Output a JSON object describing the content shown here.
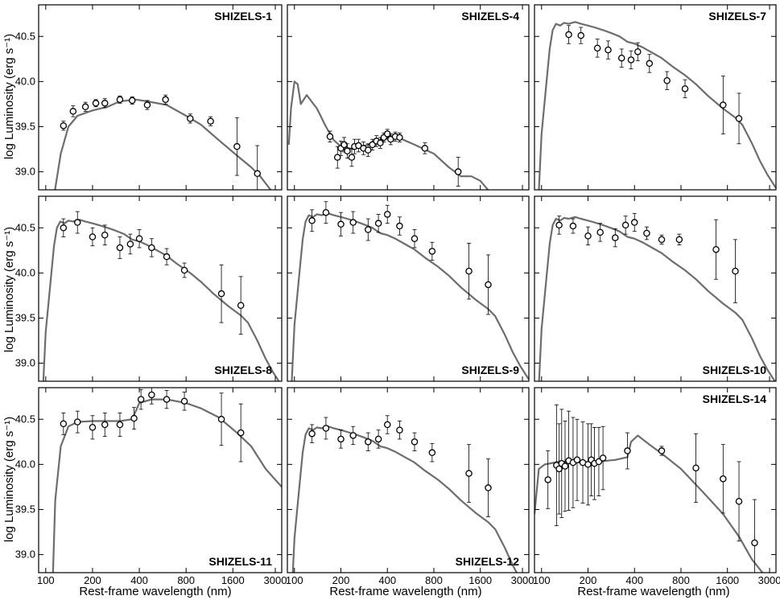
{
  "figure": {
    "ylabel": "log Luminosity (erg s⁻¹)",
    "xlabel": "Rest-frame wavelength (nm)"
  },
  "chart_data": [
    {
      "type": "scatter",
      "title": "SHIZELS-1",
      "xscale": "log",
      "xlim": [
        90,
        3300
      ],
      "ylim": [
        38.8,
        40.85
      ],
      "x": [
        160,
        185,
        220,
        250,
        300,
        340,
        400,
        480,
        550
      ],
      "y": [
        39.8,
        39.78,
        39.77,
        39.8,
        39.8,
        39.77,
        39.75,
        39.62,
        39.45
      ],
      "points": [
        {
          "x": 130,
          "y": 39.51,
          "err": 0.05
        },
        {
          "x": 150,
          "y": 39.67,
          "err": 0.06
        },
        {
          "x": 180,
          "y": 39.72,
          "err": 0.05
        },
        {
          "x": 210,
          "y": 39.76,
          "err": 0.04
        },
        {
          "x": 240,
          "y": 39.76,
          "err": 0.05
        },
        {
          "x": 300,
          "y": 39.8,
          "err": 0.04
        },
        {
          "x": 360,
          "y": 39.79,
          "err": 0.04
        },
        {
          "x": 450,
          "y": 39.74,
          "err": 0.05
        },
        {
          "x": 590,
          "y": 39.8,
          "err": 0.05
        },
        {
          "x": 850,
          "y": 39.59,
          "err": 0.05
        },
        {
          "x": 1150,
          "y": 39.56,
          "err": 0.05
        },
        {
          "x": 1700,
          "y": 39.28,
          "err": 0.32
        },
        {
          "x": 2300,
          "y": 38.98,
          "err": 0.31
        }
      ]
    },
    {
      "type": "scatter",
      "title": "SHIZELS-4",
      "xscale": "log",
      "xlim": [
        90,
        3300
      ],
      "ylim": [
        38.8,
        40.85
      ],
      "points": [
        {
          "x": 170,
          "y": 39.39,
          "err": 0.06
        },
        {
          "x": 190,
          "y": 39.16,
          "err": 0.12
        },
        {
          "x": 200,
          "y": 39.26,
          "err": 0.08
        },
        {
          "x": 210,
          "y": 39.3,
          "err": 0.08
        },
        {
          "x": 220,
          "y": 39.23,
          "err": 0.08
        },
        {
          "x": 235,
          "y": 39.16,
          "err": 0.1
        },
        {
          "x": 245,
          "y": 39.28,
          "err": 0.08
        },
        {
          "x": 260,
          "y": 39.29,
          "err": 0.07
        },
        {
          "x": 280,
          "y": 39.26,
          "err": 0.07
        },
        {
          "x": 300,
          "y": 39.24,
          "err": 0.07
        },
        {
          "x": 320,
          "y": 39.3,
          "err": 0.06
        },
        {
          "x": 340,
          "y": 39.34,
          "err": 0.06
        },
        {
          "x": 360,
          "y": 39.32,
          "err": 0.06
        },
        {
          "x": 380,
          "y": 39.38,
          "err": 0.05
        },
        {
          "x": 400,
          "y": 39.42,
          "err": 0.05
        },
        {
          "x": 420,
          "y": 39.36,
          "err": 0.06
        },
        {
          "x": 450,
          "y": 39.39,
          "err": 0.05
        },
        {
          "x": 480,
          "y": 39.38,
          "err": 0.05
        },
        {
          "x": 700,
          "y": 39.26,
          "err": 0.06
        },
        {
          "x": 1150,
          "y": 39.0,
          "err": 0.16
        }
      ]
    },
    {
      "type": "scatter",
      "title": "SHIZELS-7",
      "xscale": "log",
      "xlim": [
        90,
        3300
      ],
      "ylim": [
        38.8,
        40.85
      ],
      "points": [
        {
          "x": 150,
          "y": 40.52,
          "err": 0.1
        },
        {
          "x": 180,
          "y": 40.51,
          "err": 0.09
        },
        {
          "x": 230,
          "y": 40.37,
          "err": 0.1
        },
        {
          "x": 270,
          "y": 40.35,
          "err": 0.1
        },
        {
          "x": 330,
          "y": 40.26,
          "err": 0.1
        },
        {
          "x": 380,
          "y": 40.24,
          "err": 0.1
        },
        {
          "x": 420,
          "y": 40.33,
          "err": 0.1
        },
        {
          "x": 500,
          "y": 40.2,
          "err": 0.1
        },
        {
          "x": 650,
          "y": 40.01,
          "err": 0.1
        },
        {
          "x": 850,
          "y": 39.92,
          "err": 0.1
        },
        {
          "x": 1500,
          "y": 39.74,
          "err": 0.32
        },
        {
          "x": 1900,
          "y": 39.59,
          "err": 0.28
        }
      ]
    },
    {
      "type": "scatter",
      "title": "SHIZELS-8",
      "xscale": "log",
      "xlim": [
        90,
        3300
      ],
      "ylim": [
        38.8,
        40.85
      ],
      "points": [
        {
          "x": 130,
          "y": 40.5,
          "err": 0.1
        },
        {
          "x": 160,
          "y": 40.56,
          "err": 0.12
        },
        {
          "x": 200,
          "y": 40.4,
          "err": 0.1
        },
        {
          "x": 240,
          "y": 40.42,
          "err": 0.11
        },
        {
          "x": 300,
          "y": 40.28,
          "err": 0.12
        },
        {
          "x": 350,
          "y": 40.32,
          "err": 0.11
        },
        {
          "x": 400,
          "y": 40.38,
          "err": 0.1
        },
        {
          "x": 480,
          "y": 40.28,
          "err": 0.1
        },
        {
          "x": 600,
          "y": 40.18,
          "err": 0.09
        },
        {
          "x": 780,
          "y": 40.03,
          "err": 0.08
        },
        {
          "x": 1350,
          "y": 39.77,
          "err": 0.32
        },
        {
          "x": 1800,
          "y": 39.64,
          "err": 0.32
        }
      ]
    },
    {
      "type": "scatter",
      "title": "SHIZELS-9",
      "xscale": "log",
      "xlim": [
        90,
        3300
      ],
      "ylim": [
        38.8,
        40.85
      ],
      "points": [
        {
          "x": 130,
          "y": 40.58,
          "err": 0.12
        },
        {
          "x": 160,
          "y": 40.67,
          "err": 0.12
        },
        {
          "x": 200,
          "y": 40.54,
          "err": 0.13
        },
        {
          "x": 240,
          "y": 40.56,
          "err": 0.12
        },
        {
          "x": 300,
          "y": 40.48,
          "err": 0.12
        },
        {
          "x": 350,
          "y": 40.55,
          "err": 0.1
        },
        {
          "x": 400,
          "y": 40.65,
          "err": 0.1
        },
        {
          "x": 480,
          "y": 40.52,
          "err": 0.1
        },
        {
          "x": 600,
          "y": 40.38,
          "err": 0.1
        },
        {
          "x": 780,
          "y": 40.24,
          "err": 0.1
        },
        {
          "x": 1350,
          "y": 40.02,
          "err": 0.31
        },
        {
          "x": 1800,
          "y": 39.87,
          "err": 0.33
        }
      ]
    },
    {
      "type": "scatter",
      "title": "SHIZELS-10",
      "xscale": "log",
      "xlim": [
        90,
        3300
      ],
      "ylim": [
        38.8,
        40.85
      ],
      "points": [
        {
          "x": 130,
          "y": 40.53,
          "err": 0.1
        },
        {
          "x": 160,
          "y": 40.52,
          "err": 0.08
        },
        {
          "x": 200,
          "y": 40.41,
          "err": 0.1
        },
        {
          "x": 240,
          "y": 40.45,
          "err": 0.1
        },
        {
          "x": 300,
          "y": 40.39,
          "err": 0.1
        },
        {
          "x": 350,
          "y": 40.53,
          "err": 0.1
        },
        {
          "x": 400,
          "y": 40.56,
          "err": 0.1
        },
        {
          "x": 480,
          "y": 40.44,
          "err": 0.07
        },
        {
          "x": 600,
          "y": 40.37,
          "err": 0.05
        },
        {
          "x": 780,
          "y": 40.37,
          "err": 0.06
        },
        {
          "x": 1350,
          "y": 40.26,
          "err": 0.33
        },
        {
          "x": 1800,
          "y": 40.02,
          "err": 0.35
        }
      ]
    },
    {
      "type": "scatter",
      "title": "SHIZELS-11",
      "xscale": "log",
      "xlim": [
        90,
        3300
      ],
      "ylim": [
        38.8,
        40.85
      ],
      "points": [
        {
          "x": 130,
          "y": 40.45,
          "err": 0.12
        },
        {
          "x": 160,
          "y": 40.47,
          "err": 0.12
        },
        {
          "x": 200,
          "y": 40.41,
          "err": 0.13
        },
        {
          "x": 240,
          "y": 40.44,
          "err": 0.13
        },
        {
          "x": 300,
          "y": 40.44,
          "err": 0.13
        },
        {
          "x": 370,
          "y": 40.51,
          "err": 0.12
        },
        {
          "x": 410,
          "y": 40.72,
          "err": 0.11
        },
        {
          "x": 480,
          "y": 40.77,
          "err": 0.1
        },
        {
          "x": 600,
          "y": 40.72,
          "err": 0.1
        },
        {
          "x": 780,
          "y": 40.7,
          "err": 0.1
        },
        {
          "x": 1350,
          "y": 40.5,
          "err": 0.29
        },
        {
          "x": 1800,
          "y": 40.35,
          "err": 0.32
        }
      ]
    },
    {
      "type": "scatter",
      "title": "SHIZELS-12",
      "xscale": "log",
      "xlim": [
        90,
        3300
      ],
      "ylim": [
        38.8,
        40.85
      ],
      "points": [
        {
          "x": 130,
          "y": 40.34,
          "err": 0.1
        },
        {
          "x": 160,
          "y": 40.4,
          "err": 0.12
        },
        {
          "x": 200,
          "y": 40.28,
          "err": 0.1
        },
        {
          "x": 240,
          "y": 40.32,
          "err": 0.1
        },
        {
          "x": 300,
          "y": 40.25,
          "err": 0.1
        },
        {
          "x": 350,
          "y": 40.28,
          "err": 0.1
        },
        {
          "x": 400,
          "y": 40.44,
          "err": 0.1
        },
        {
          "x": 480,
          "y": 40.38,
          "err": 0.1
        },
        {
          "x": 600,
          "y": 40.25,
          "err": 0.1
        },
        {
          "x": 780,
          "y": 40.13,
          "err": 0.1
        },
        {
          "x": 1350,
          "y": 39.9,
          "err": 0.32
        },
        {
          "x": 1800,
          "y": 39.74,
          "err": 0.32
        }
      ]
    },
    {
      "type": "scatter",
      "title": "SHIZELS-14",
      "xscale": "log",
      "xlim": [
        90,
        3300
      ],
      "ylim": [
        38.8,
        40.85
      ],
      "points": [
        {
          "x": 110,
          "y": 39.83,
          "err": 0.32
        },
        {
          "x": 125,
          "y": 39.99,
          "err": 0.67
        },
        {
          "x": 130,
          "y": 39.95,
          "err": 0.5
        },
        {
          "x": 135,
          "y": 40.01,
          "err": 0.6
        },
        {
          "x": 142,
          "y": 39.98,
          "err": 0.5
        },
        {
          "x": 150,
          "y": 40.04,
          "err": 0.55
        },
        {
          "x": 160,
          "y": 40.02,
          "err": 0.5
        },
        {
          "x": 170,
          "y": 40.05,
          "err": 0.45
        },
        {
          "x": 185,
          "y": 40.02,
          "err": 0.45
        },
        {
          "x": 200,
          "y": 40.0,
          "err": 0.45
        },
        {
          "x": 210,
          "y": 40.05,
          "err": 0.4
        },
        {
          "x": 220,
          "y": 40.01,
          "err": 0.4
        },
        {
          "x": 235,
          "y": 40.03,
          "err": 0.38
        },
        {
          "x": 250,
          "y": 40.07,
          "err": 0.35
        },
        {
          "x": 360,
          "y": 40.15,
          "err": 0.2
        },
        {
          "x": 600,
          "y": 40.15,
          "err": 0.05
        },
        {
          "x": 1000,
          "y": 39.96,
          "err": 0.38
        },
        {
          "x": 1500,
          "y": 39.84,
          "err": 0.38
        },
        {
          "x": 1900,
          "y": 39.59,
          "err": 0.44
        },
        {
          "x": 2400,
          "y": 39.13,
          "err": 0.48
        }
      ]
    }
  ],
  "axes": {
    "y_ticks": [
      "39.0",
      "39.5",
      "40.0",
      "40.5"
    ],
    "x_ticks": [
      "100",
      "200",
      "400",
      "800",
      "1600",
      "3000"
    ]
  }
}
